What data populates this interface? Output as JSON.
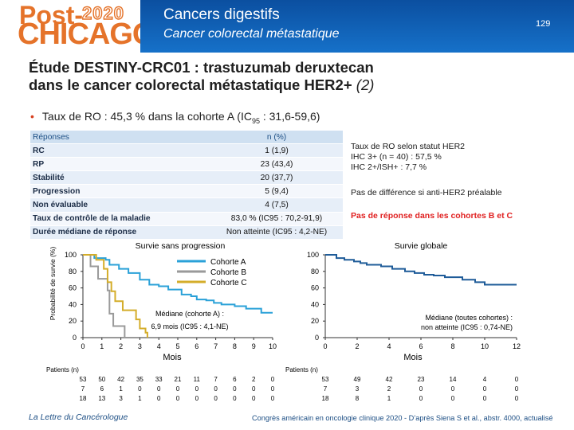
{
  "header": {
    "logo_post": "Post-",
    "logo_year": "2020",
    "logo_city": "CHICAGO",
    "title": "Cancers digestifs",
    "subtitle": "Cancer colorectal métastatique",
    "slide_number": "129",
    "colors": {
      "band": "#1466c0",
      "logo": "#e5732a"
    }
  },
  "slide": {
    "title_line1": "Étude DESTINY-CRC01 : trastuzumab deruxtecan",
    "title_line2": "dans le cancer colorectal métastatique HER2+ ",
    "title_suffix": "(2)",
    "bullet_pre": "Taux de RO : 45,3 % dans la cohorte A (IC",
    "bullet_sub": "95",
    "bullet_post": " : 31,6-59,6)"
  },
  "response_table": {
    "header": [
      "Réponses",
      "n (%)"
    ],
    "rows": [
      [
        "RC",
        "1 (1,9)"
      ],
      [
        "RP",
        "23 (43,4)"
      ],
      [
        "Stabilité",
        "20 (37,7)"
      ],
      [
        "Progression",
        "5 (9,4)"
      ],
      [
        "Non évaluable",
        "4 (7,5)"
      ],
      [
        "Taux de contrôle de la maladie",
        "83,0 % (IC95 : 70,2-91,9)"
      ],
      [
        "Durée médiane de réponse",
        "Non atteinte (IC95 : 4,2-NE)"
      ]
    ]
  },
  "notes": {
    "ro_line1": "Taux de RO selon statut HER2",
    "ro_line2": "IHC 3+ (n = 40) : 57,5 %",
    "ro_line3": "IHC 2+/ISH+ : 7,7 %",
    "no_diff": "Pas de différence si anti-HER2 préalable",
    "no_response": "Pas de réponse dans les cohortes B et C"
  },
  "pfs_chart": {
    "title": "Survie sans progression",
    "ylabel": "Probabilité de survie (%)",
    "xlabel": "Mois",
    "legend": [
      "Cohorte A",
      "Cohorte B",
      "Cohorte C"
    ],
    "median_line1": "Médiane (cohorte A) :",
    "median_line2": "6,9 mois (IC95 : 4,1-NE)",
    "patients_label": "Patients (n)",
    "risk_rows": [
      [
        "53",
        "50",
        "42",
        "35",
        "33",
        "21",
        "11",
        "7",
        "6",
        "2",
        "0"
      ],
      [
        "7",
        "6",
        "1",
        "0",
        "0",
        "0",
        "0",
        "0",
        "0",
        "0",
        "0"
      ],
      [
        "18",
        "13",
        "3",
        "1",
        "0",
        "0",
        "0",
        "0",
        "0",
        "0",
        "0"
      ]
    ]
  },
  "os_chart": {
    "title": "Survie globale",
    "xlabel": "Mois",
    "median_line1": "Médiane (toutes cohortes) :",
    "median_line2": "non atteinte (IC95 : 0,74-NE)",
    "patients_label": "Patients (n)",
    "risk_rows": [
      [
        "53",
        "49",
        "42",
        "23",
        "14",
        "4",
        "0"
      ],
      [
        "7",
        "3",
        "2",
        "0",
        "0",
        "0",
        "0"
      ],
      [
        "18",
        "8",
        "1",
        "0",
        "0",
        "0",
        "0"
      ]
    ]
  },
  "chart_data": [
    {
      "type": "line",
      "title": "Survie sans progression",
      "xlabel": "Mois",
      "ylabel": "Probabilité de survie (%)",
      "xlim": [
        0,
        10
      ],
      "ylim": [
        0,
        100
      ],
      "xticks": [
        "0",
        "1",
        "2",
        "3",
        "4",
        "5",
        "6",
        "7",
        "8",
        "9",
        "10"
      ],
      "yticks": [
        "0",
        "20",
        "40",
        "60",
        "80",
        "100"
      ],
      "series": [
        {
          "name": "Cohorte A",
          "color": "#2aa1d8",
          "steps": [
            [
              0,
              100
            ],
            [
              0.5,
              100
            ],
            [
              0.6,
              96
            ],
            [
              1.2,
              94
            ],
            [
              1.4,
              88
            ],
            [
              1.9,
              83
            ],
            [
              2.4,
              78
            ],
            [
              3.0,
              70
            ],
            [
              3.5,
              64
            ],
            [
              4.0,
              62
            ],
            [
              4.5,
              58
            ],
            [
              5.2,
              52
            ],
            [
              5.7,
              50
            ],
            [
              6.0,
              46
            ],
            [
              6.5,
              45
            ],
            [
              6.9,
              42
            ],
            [
              7.3,
              40
            ],
            [
              8.0,
              38
            ],
            [
              8.6,
              35
            ],
            [
              9.4,
              30
            ],
            [
              10,
              30
            ]
          ]
        },
        {
          "name": "Cohorte B",
          "color": "#9a9a9a",
          "steps": [
            [
              0,
              100
            ],
            [
              0.3,
              100
            ],
            [
              0.4,
              86
            ],
            [
              0.8,
              71
            ],
            [
              1.3,
              57
            ],
            [
              1.4,
              29
            ],
            [
              1.6,
              14
            ],
            [
              2.2,
              0
            ]
          ]
        },
        {
          "name": "Cohorte C",
          "color": "#d4ad2a",
          "steps": [
            [
              0,
              100
            ],
            [
              0.6,
              100
            ],
            [
              0.7,
              94
            ],
            [
              1.1,
              83
            ],
            [
              1.3,
              67
            ],
            [
              1.5,
              56
            ],
            [
              1.7,
              44
            ],
            [
              2.1,
              33
            ],
            [
              2.8,
              22
            ],
            [
              3.0,
              11
            ],
            [
              3.3,
              6
            ],
            [
              3.4,
              0
            ]
          ]
        }
      ]
    },
    {
      "type": "line",
      "title": "Survie globale",
      "xlabel": "Mois",
      "xlim": [
        0,
        12
      ],
      "ylim": [
        0,
        100
      ],
      "xticks": [
        "0",
        "2",
        "4",
        "6",
        "8",
        "10",
        "12"
      ],
      "yticks": [
        "0",
        "20",
        "40",
        "60",
        "80",
        "100"
      ],
      "series": [
        {
          "name": "Toutes cohortes",
          "color": "#1f5c99",
          "steps": [
            [
              0,
              100
            ],
            [
              0.5,
              100
            ],
            [
              0.7,
              96
            ],
            [
              1.2,
              94
            ],
            [
              1.8,
              92
            ],
            [
              2.2,
              90
            ],
            [
              2.6,
              88
            ],
            [
              3.5,
              86
            ],
            [
              4.2,
              83
            ],
            [
              5.0,
              80
            ],
            [
              5.6,
              78
            ],
            [
              6.2,
              76
            ],
            [
              6.8,
              75
            ],
            [
              7.5,
              73
            ],
            [
              8.6,
              70
            ],
            [
              9.4,
              67
            ],
            [
              10.0,
              64
            ],
            [
              12,
              64
            ]
          ]
        }
      ]
    }
  ],
  "footer": {
    "left": "La Lettre du Cancérologue",
    "right": "Congrès américain en oncologie clinique 2020 - D’après Siena S et al., abstr. 4000, actualisé"
  }
}
